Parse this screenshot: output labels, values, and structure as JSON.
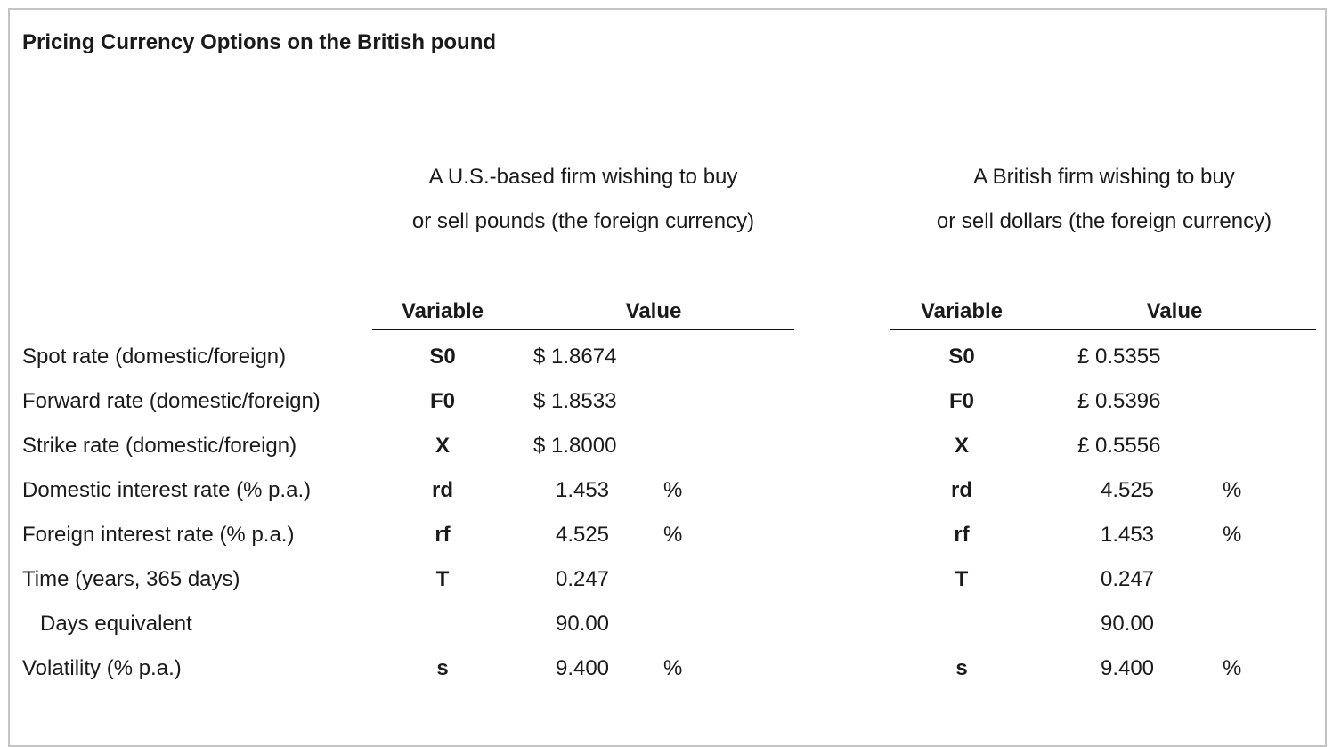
{
  "title": "Pricing Currency Options on the British pound",
  "us_firm": {
    "header_line1": "A U.S.-based firm wishing to buy",
    "header_line2": "or sell pounds (the foreign currency)",
    "col_variable": "Variable",
    "col_value": "Value"
  },
  "uk_firm": {
    "header_line1": "A British firm wishing to buy",
    "header_line2": "or sell dollars (the foreign currency)",
    "col_variable": "Variable",
    "col_value": "Value"
  },
  "rows": [
    {
      "label": "Spot rate (domestic/foreign)",
      "us_sym": "S0",
      "us_val": "$ 1.8674",
      "us_unit": "",
      "uk_sym": "S0",
      "uk_val": "£ 0.5355",
      "uk_unit": ""
    },
    {
      "label": "Forward rate (domestic/foreign)",
      "us_sym": "F0",
      "us_val": "$ 1.8533",
      "us_unit": "",
      "uk_sym": "F0",
      "uk_val": "£ 0.5396",
      "uk_unit": ""
    },
    {
      "label": "Strike rate (domestic/foreign)",
      "us_sym": "X",
      "us_val": "$ 1.8000",
      "us_unit": "",
      "uk_sym": "X",
      "uk_val": "£ 0.5556",
      "uk_unit": ""
    },
    {
      "label": "Domestic interest rate (% p.a.)",
      "us_sym": "rd",
      "us_val": "1.453",
      "us_unit": "%",
      "uk_sym": "rd",
      "uk_val": "4.525",
      "uk_unit": "%"
    },
    {
      "label": "Foreign interest rate (% p.a.)",
      "us_sym": "rf",
      "us_val": "4.525",
      "us_unit": "%",
      "uk_sym": "rf",
      "uk_val": "1.453",
      "uk_unit": "%"
    },
    {
      "label": "Time (years, 365 days)",
      "us_sym": "T",
      "us_val": "0.247",
      "us_unit": "",
      "uk_sym": "T",
      "uk_val": "0.247",
      "uk_unit": ""
    },
    {
      "label": "Days equivalent",
      "us_sym": "",
      "us_val": "90.00",
      "us_unit": "",
      "uk_sym": "",
      "uk_val": "90.00",
      "uk_unit": ""
    },
    {
      "label": "Volatility (% p.a.)",
      "us_sym": "s",
      "us_val": "9.400",
      "us_unit": "%",
      "uk_sym": "s",
      "uk_val": "9.400",
      "uk_unit": "%"
    }
  ]
}
